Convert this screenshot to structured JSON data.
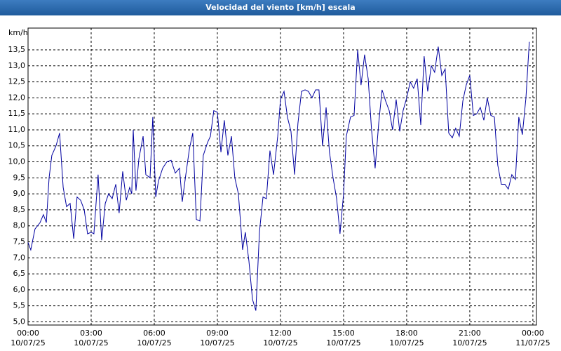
{
  "chart_data": {
    "type": "line",
    "title": "Velocidad del viento [km/h] escala",
    "y_label": "km/h",
    "x": [
      0,
      0.13,
      0.33,
      0.57,
      0.73,
      0.87,
      1.0,
      1.13,
      1.33,
      1.5,
      1.67,
      1.83,
      2.0,
      2.17,
      2.33,
      2.5,
      2.67,
      2.83,
      3.0,
      3.13,
      3.33,
      3.5,
      3.67,
      3.83,
      4.0,
      4.17,
      4.33,
      4.5,
      4.67,
      4.83,
      4.93,
      5.0,
      5.13,
      5.27,
      5.47,
      5.6,
      5.8,
      5.93,
      6.07,
      6.2,
      6.4,
      6.6,
      6.8,
      7.0,
      7.2,
      7.33,
      7.5,
      7.67,
      7.83,
      8.0,
      8.17,
      8.33,
      8.53,
      8.67,
      8.83,
      9.0,
      9.17,
      9.33,
      9.5,
      9.67,
      9.83,
      10.0,
      10.2,
      10.33,
      10.5,
      10.67,
      10.83,
      11.0,
      11.17,
      11.33,
      11.5,
      11.67,
      11.87,
      12.0,
      12.17,
      12.33,
      12.5,
      12.67,
      12.83,
      13.0,
      13.17,
      13.33,
      13.5,
      13.67,
      13.83,
      14.0,
      14.17,
      14.33,
      14.5,
      14.67,
      14.83,
      15.0,
      15.13,
      15.33,
      15.5,
      15.67,
      15.83,
      16.0,
      16.17,
      16.33,
      16.5,
      16.67,
      16.83,
      17.0,
      17.17,
      17.33,
      17.5,
      17.67,
      17.83,
      18.0,
      18.17,
      18.33,
      18.5,
      18.67,
      18.83,
      19.0,
      19.17,
      19.33,
      19.5,
      19.67,
      19.83,
      20.0,
      20.17,
      20.33,
      20.5,
      20.67,
      20.83,
      21.0,
      21.17,
      21.33,
      21.5,
      21.67,
      21.83,
      22.0,
      22.17,
      22.33,
      22.5,
      22.67,
      22.83,
      23.0,
      23.17,
      23.33,
      23.5,
      23.67,
      23.83
    ],
    "series": [
      {
        "color": "#0000a0",
        "values": [
          7.48,
          7.25,
          7.9,
          8.1,
          8.35,
          8.1,
          9.5,
          10.2,
          10.5,
          10.9,
          9.2,
          8.6,
          8.7,
          7.6,
          8.9,
          8.8,
          8.5,
          7.75,
          7.8,
          7.75,
          9.6,
          7.55,
          8.7,
          9.0,
          8.85,
          9.3,
          8.4,
          9.7,
          8.8,
          9.2,
          9.0,
          11.0,
          9.1,
          10.1,
          10.8,
          9.6,
          9.5,
          11.4,
          8.9,
          9.4,
          9.8,
          10.0,
          10.05,
          9.65,
          9.8,
          8.75,
          9.6,
          10.4,
          10.9,
          8.2,
          8.15,
          10.2,
          10.6,
          10.8,
          11.6,
          11.55,
          10.3,
          11.3,
          10.2,
          10.8,
          9.5,
          9.0,
          7.25,
          7.8,
          6.9,
          5.7,
          5.35,
          7.8,
          8.9,
          8.85,
          10.35,
          9.6,
          10.8,
          11.95,
          12.2,
          11.4,
          10.95,
          9.6,
          11.2,
          12.2,
          12.25,
          12.2,
          12.0,
          12.25,
          12.25,
          10.5,
          11.7,
          10.3,
          9.5,
          8.85,
          7.75,
          9.0,
          10.8,
          11.4,
          11.45,
          13.5,
          12.4,
          13.35,
          12.6,
          11.0,
          9.8,
          11.2,
          12.25,
          11.9,
          11.6,
          11.0,
          11.95,
          10.95,
          11.6,
          12.0,
          12.5,
          12.3,
          12.6,
          11.15,
          13.3,
          12.2,
          13.0,
          12.8,
          13.6,
          12.7,
          12.9,
          10.9,
          10.75,
          11.05,
          10.8,
          11.9,
          12.4,
          12.7,
          11.45,
          11.5,
          11.7,
          11.3,
          12.0,
          11.45,
          11.4,
          9.9,
          9.3,
          9.3,
          9.15,
          9.6,
          9.45,
          11.4,
          10.85,
          12.0,
          13.75
        ]
      }
    ],
    "xlim": [
      0,
      24.17
    ],
    "ylim": [
      4.9,
      14.18
    ],
    "xticks": [
      {
        "value": 0,
        "label": "00:00\n10/07/25"
      },
      {
        "value": 3,
        "label": "03:00\n10/07/25"
      },
      {
        "value": 6,
        "label": "06:00\n10/07/25"
      },
      {
        "value": 9,
        "label": "09:00\n10/07/25"
      },
      {
        "value": 12,
        "label": "12:00\n10/07/25"
      },
      {
        "value": 15,
        "label": "15:00\n10/07/25"
      },
      {
        "value": 18,
        "label": "18:00\n10/07/25"
      },
      {
        "value": 21,
        "label": "21:00\n10/07/25"
      },
      {
        "value": 24,
        "label": "00:00\n11/07/25"
      }
    ],
    "yticks": [
      {
        "value": 5,
        "label": "5,0"
      },
      {
        "value": 5.5,
        "label": "5,5"
      },
      {
        "value": 6,
        "label": "6,0"
      },
      {
        "value": 6.5,
        "label": "6,5"
      },
      {
        "value": 7,
        "label": "7,0"
      },
      {
        "value": 7.5,
        "label": "7,5"
      },
      {
        "value": 8,
        "label": "8,0"
      },
      {
        "value": 8.5,
        "label": "8,5"
      },
      {
        "value": 9,
        "label": "9,0"
      },
      {
        "value": 9.5,
        "label": "9,5"
      },
      {
        "value": 10,
        "label": "10,0"
      },
      {
        "value": 10.5,
        "label": "10,5"
      },
      {
        "value": 11,
        "label": "11,0"
      },
      {
        "value": 11.5,
        "label": "11,5"
      },
      {
        "value": 12,
        "label": "12,0"
      },
      {
        "value": 12.5,
        "label": "12,5"
      },
      {
        "value": 13,
        "label": "13,0"
      },
      {
        "value": 13.5,
        "label": "13,5"
      }
    ],
    "grid": true
  }
}
